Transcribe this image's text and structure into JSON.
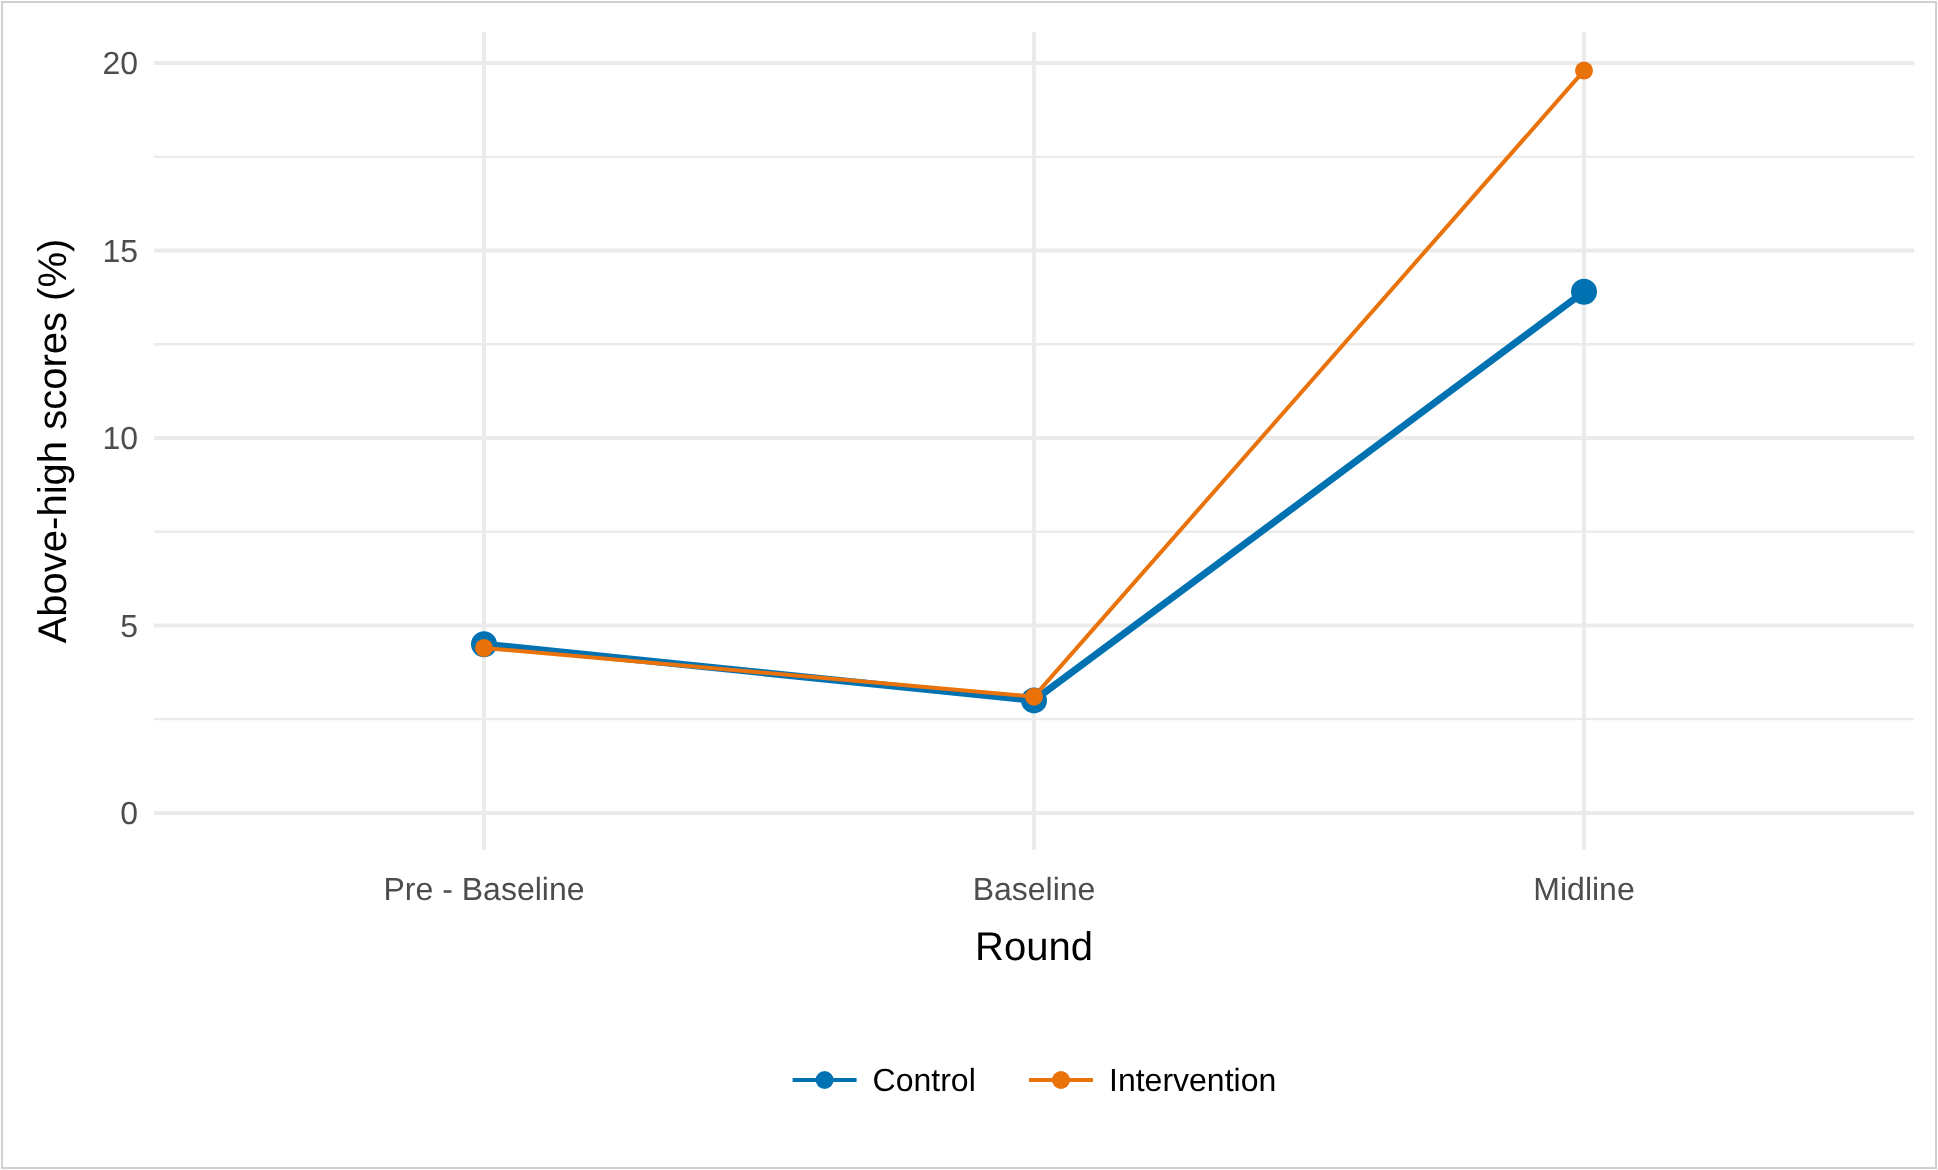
{
  "chart_data": {
    "type": "line",
    "xlabel": "Round",
    "ylabel": "Above-high scores (%)",
    "categories": [
      "Pre - Baseline",
      "Baseline",
      "Midline"
    ],
    "series": [
      {
        "name": "Control",
        "color": "#0072b2",
        "values": [
          4.5,
          3.0,
          13.9
        ]
      },
      {
        "name": "Intervention",
        "color": "#e9720b",
        "values": [
          4.4,
          3.1,
          19.8
        ]
      }
    ],
    "ylim": [
      -0.99,
      20.83
    ],
    "yticks": [
      0,
      {
        "value": 2.5,
        "label": null
      },
      5,
      {
        "value": 7.5,
        "label": null
      },
      10,
      {
        "value": 12.5,
        "label": null
      },
      15,
      {
        "value": 17.5,
        "label": null
      },
      20
    ],
    "grid": true,
    "legend": "bottom",
    "marker": "circle",
    "line_style": "solid"
  }
}
